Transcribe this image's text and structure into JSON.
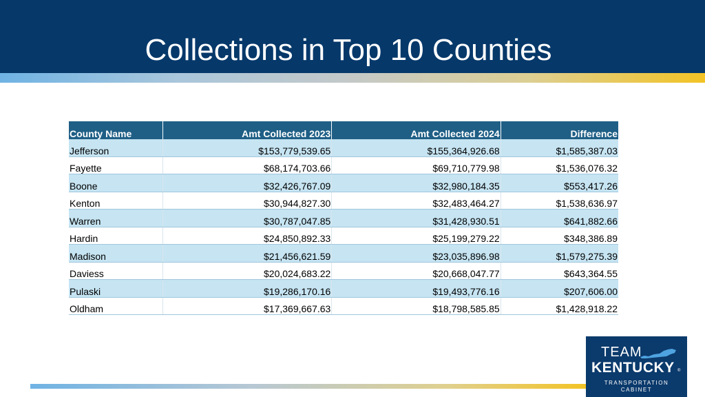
{
  "slide": {
    "title": "Collections in Top 10 Counties"
  },
  "table": {
    "headers": [
      "County Name",
      "Amt Collected 2023",
      "Amt Collected 2024",
      "Difference"
    ],
    "rows": [
      [
        "Jefferson",
        "$153,779,539.65",
        "$155,364,926.68",
        "$1,585,387.03"
      ],
      [
        "Fayette",
        "$68,174,703.66",
        "$69,710,779.98",
        "$1,536,076.32"
      ],
      [
        "Boone",
        "$32,426,767.09",
        "$32,980,184.35",
        "$553,417.26"
      ],
      [
        "Kenton",
        "$30,944,827.30",
        "$32,483,464.27",
        "$1,538,636.97"
      ],
      [
        "Warren",
        "$30,787,047.85",
        "$31,428,930.51",
        "$641,882.66"
      ],
      [
        "Hardin",
        "$24,850,892.33",
        "$25,199,279.22",
        "$348,386.89"
      ],
      [
        "Madison",
        "$21,456,621.59",
        "$23,035,896.98",
        "$1,579,275.39"
      ],
      [
        "Daviess",
        "$20,024,683.22",
        "$20,668,047.77",
        "$643,364.55"
      ],
      [
        "Pulaski",
        "$19,286,170.16",
        "$19,493,776.16",
        "$207,606.00"
      ],
      [
        "Oldham",
        "$17,369,667.63",
        "$18,798,585.85",
        "$1,428,918.22"
      ]
    ]
  },
  "logo": {
    "team": "TEAM",
    "kentucky": "KENTUCKY",
    "registered": "®",
    "line1": "TRANSPORTATION",
    "line2": "CABINET"
  },
  "colors": {
    "header_bg": "#06386a",
    "table_header_bg": "#1f5f86",
    "row_shade": "#c6e4f2",
    "accent_gold": "#f3c325",
    "accent_blue": "#6fb3e4"
  }
}
